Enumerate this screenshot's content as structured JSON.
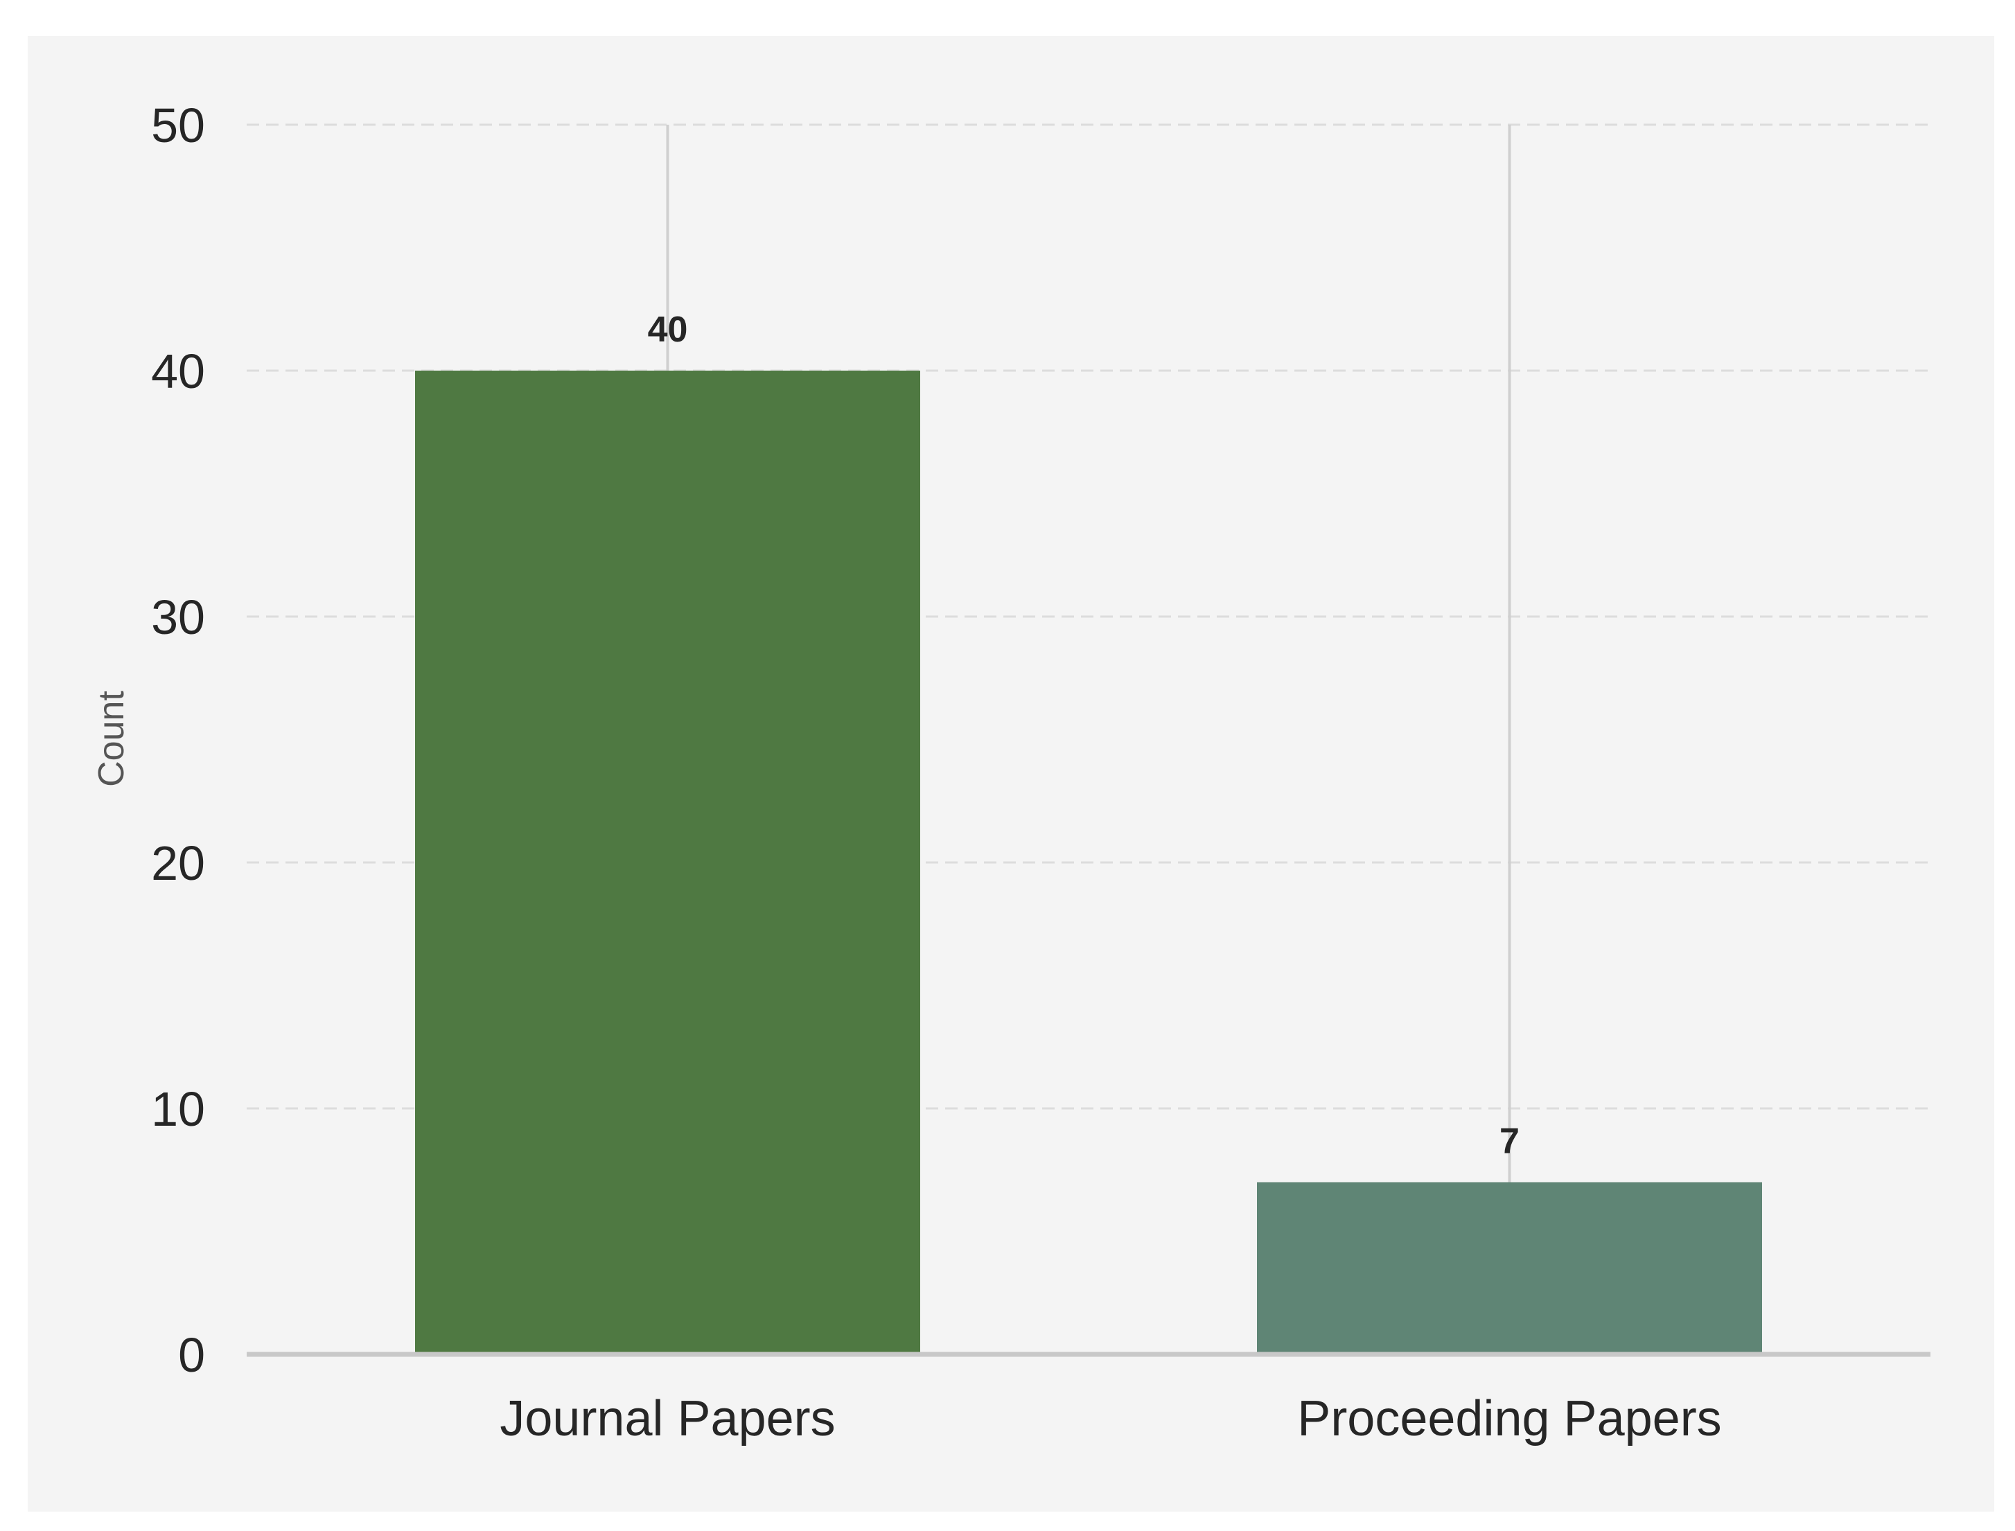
{
  "chart_data": {
    "type": "bar",
    "categories": [
      "Journal Papers",
      "Proceeding Papers"
    ],
    "values": [
      40,
      7
    ],
    "value_labels": [
      "40",
      "7"
    ],
    "bar_colors": [
      "#4f7942",
      "#5f8575"
    ],
    "title": "",
    "xlabel": "",
    "ylabel": "Count",
    "ylim": [
      0,
      50
    ],
    "yticks": [
      0,
      10,
      20,
      30,
      40,
      50
    ],
    "ytick_labels": [
      "0",
      "10",
      "20",
      "30",
      "40",
      "50"
    ],
    "grid": "horizontal dashed",
    "background_color": "#f4f4f4",
    "legend": "none"
  }
}
